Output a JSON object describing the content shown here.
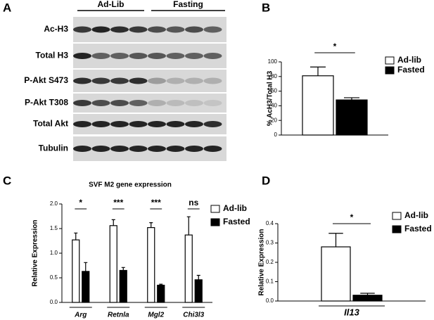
{
  "blot": {
    "panel": "A",
    "groups": [
      "Ad-Lib",
      "Fasting"
    ],
    "rows": [
      "Ac-H3",
      "Total H3",
      "P-Akt S473",
      "P-Akt T308",
      "Total Akt",
      "Tubulin"
    ]
  },
  "chart_data": [
    {
      "type": "bar",
      "panel": "B",
      "ylabel": "% AcH3/Total H3",
      "categories": [
        null
      ],
      "series": [
        {
          "name": "Ad-lib",
          "color": "#ffffff",
          "values": [
            81
          ],
          "errors": [
            12
          ]
        },
        {
          "name": "Fasted",
          "color": "#000000",
          "values": [
            48
          ],
          "errors": [
            3
          ]
        }
      ],
      "significance": [
        "*"
      ],
      "ylim": [
        0,
        100
      ],
      "yticks": [
        0,
        20,
        40,
        60,
        80,
        100
      ]
    },
    {
      "type": "bar",
      "panel": "C",
      "title": "SVF M2 gene expression",
      "ylabel": "Relative Expression",
      "categories": [
        "Arg",
        "Retnla",
        "Mgl2",
        "Chi3l3"
      ],
      "series": [
        {
          "name": "Ad-lib",
          "color": "#ffffff",
          "values": [
            1.27,
            1.56,
            1.52,
            1.37
          ],
          "errors": [
            0.14,
            0.12,
            0.1,
            0.37
          ]
        },
        {
          "name": "Fasted",
          "color": "#000000",
          "values": [
            0.63,
            0.65,
            0.35,
            0.46
          ],
          "errors": [
            0.18,
            0.06,
            0.02,
            0.09
          ]
        }
      ],
      "significance": [
        "*",
        "***",
        "***",
        "ns"
      ],
      "ylim": [
        0,
        2
      ],
      "yticks": [
        {
          "value": 0,
          "label": "0.0"
        },
        0.5,
        {
          "value": 1,
          "label": "1.0"
        },
        1.5,
        {
          "value": 2,
          "label": "2.0"
        }
      ]
    },
    {
      "type": "bar",
      "panel": "D",
      "ylabel": "Relative Expression",
      "categories": [
        "Il13"
      ],
      "series": [
        {
          "name": "Ad-lib",
          "color": "#ffffff",
          "values": [
            0.28
          ],
          "errors": [
            0.07
          ]
        },
        {
          "name": "Fasted",
          "color": "#000000",
          "values": [
            0.03
          ],
          "errors": [
            0.01
          ]
        }
      ],
      "significance": [
        "*"
      ],
      "ylim": [
        0,
        0.4
      ],
      "yticks": [
        {
          "value": 0,
          "label": "0.0"
        },
        0.1,
        0.2,
        0.3,
        0.4
      ]
    }
  ]
}
